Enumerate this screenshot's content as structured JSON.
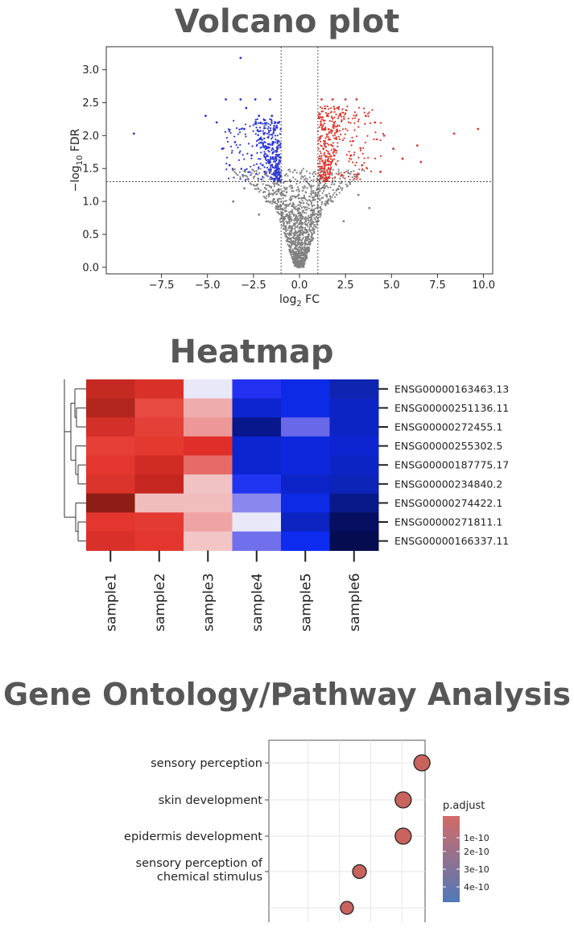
{
  "titles": {
    "volcano": "Volcano plot",
    "heatmap": "Heatmap",
    "go": "Gene Ontology/Pathway Analysis"
  },
  "chart_data": [
    {
      "type": "scatter",
      "name": "volcano",
      "title": "Volcano plot",
      "xlabel_base": "log",
      "xlabel_sub": "2",
      "xlabel_suffix": " FC",
      "ylabel_prefix": "−log",
      "ylabel_sub": "10",
      "ylabel_suffix": " FDR",
      "xlim": [
        -10.5,
        10.5
      ],
      "ylim": [
        -0.1,
        3.35
      ],
      "xticks": [
        -7.5,
        -5.0,
        -2.5,
        0.0,
        2.5,
        5.0,
        7.5,
        10.0
      ],
      "xtick_labels": [
        "−7.5",
        "−5.0",
        "−2.5",
        "0.0",
        "2.5",
        "5.0",
        "7.5",
        "10.0"
      ],
      "yticks": [
        0.0,
        0.5,
        1.0,
        1.5,
        2.0,
        2.5,
        3.0
      ],
      "ytick_labels": [
        "0.0",
        "0.5",
        "1.0",
        "1.5",
        "2.0",
        "2.5",
        "3.0"
      ],
      "thresholds": {
        "log2fc": [
          -1,
          1
        ],
        "neg_log10_fdr": 1.3
      },
      "colors": {
        "up": "#e0352b",
        "down": "#2b35d6",
        "ns": "#808080"
      },
      "points": [
        {
          "x": -9.0,
          "y": 2.03,
          "group": "down"
        },
        {
          "x": -5.1,
          "y": 2.3,
          "group": "down"
        },
        {
          "x": -4.5,
          "y": 2.2,
          "group": "down"
        },
        {
          "x": -4.0,
          "y": 2.55,
          "group": "down"
        },
        {
          "x": -3.2,
          "y": 2.55,
          "group": "down"
        },
        {
          "x": -2.9,
          "y": 2.42,
          "group": "down"
        },
        {
          "x": -2.4,
          "y": 2.55,
          "group": "down"
        },
        {
          "x": -2.2,
          "y": 2.3,
          "group": "down"
        },
        {
          "x": -1.6,
          "y": 2.55,
          "group": "down"
        },
        {
          "x": -1.4,
          "y": 2.1,
          "group": "down"
        },
        {
          "x": -1.2,
          "y": 1.8,
          "group": "down"
        },
        {
          "x": -1.7,
          "y": 1.6,
          "group": "down"
        },
        {
          "x": -2.1,
          "y": 1.95,
          "group": "down"
        },
        {
          "x": -3.5,
          "y": 1.9,
          "group": "down"
        },
        {
          "x": -3.8,
          "y": 1.55,
          "group": "down"
        },
        {
          "x": -1.3,
          "y": 1.4,
          "group": "down"
        },
        {
          "x": -1.1,
          "y": 1.35,
          "group": "down"
        },
        {
          "x": -2.6,
          "y": 1.7,
          "group": "down"
        },
        {
          "x": -1.9,
          "y": 1.45,
          "group": "down"
        },
        {
          "x": -3.0,
          "y": 2.1,
          "group": "down"
        },
        {
          "x": -4.2,
          "y": 1.8,
          "group": "down"
        },
        {
          "x": -2.0,
          "y": 1.55,
          "group": "down"
        },
        {
          "x": -1.5,
          "y": 2.3,
          "group": "down"
        },
        {
          "x": -3.2,
          "y": 3.18,
          "group": "down"
        },
        {
          "x": 1.2,
          "y": 2.55,
          "group": "up"
        },
        {
          "x": 1.5,
          "y": 2.3,
          "group": "up"
        },
        {
          "x": 1.8,
          "y": 2.55,
          "group": "up"
        },
        {
          "x": 2.1,
          "y": 2.42,
          "group": "up"
        },
        {
          "x": 2.5,
          "y": 2.55,
          "group": "up"
        },
        {
          "x": 3.1,
          "y": 2.55,
          "group": "up"
        },
        {
          "x": 3.6,
          "y": 2.3,
          "group": "up"
        },
        {
          "x": 4.1,
          "y": 2.2,
          "group": "up"
        },
        {
          "x": 4.6,
          "y": 2.0,
          "group": "up"
        },
        {
          "x": 5.1,
          "y": 1.8,
          "group": "up"
        },
        {
          "x": 5.6,
          "y": 1.65,
          "group": "up"
        },
        {
          "x": 6.4,
          "y": 1.85,
          "group": "up"
        },
        {
          "x": 6.6,
          "y": 1.6,
          "group": "up"
        },
        {
          "x": 1.3,
          "y": 1.8,
          "group": "up"
        },
        {
          "x": 1.6,
          "y": 1.5,
          "group": "up"
        },
        {
          "x": 2.0,
          "y": 1.95,
          "group": "up"
        },
        {
          "x": 2.8,
          "y": 1.7,
          "group": "up"
        },
        {
          "x": 3.4,
          "y": 1.55,
          "group": "up"
        },
        {
          "x": 1.1,
          "y": 1.4,
          "group": "up"
        },
        {
          "x": 1.4,
          "y": 2.1,
          "group": "up"
        },
        {
          "x": 2.3,
          "y": 1.4,
          "group": "up"
        },
        {
          "x": 4.4,
          "y": 1.45,
          "group": "up"
        },
        {
          "x": 8.4,
          "y": 2.03,
          "group": "up"
        },
        {
          "x": 9.7,
          "y": 2.1,
          "group": "up"
        },
        {
          "x": 0.0,
          "y": 0.0,
          "group": "ns"
        },
        {
          "x": -0.3,
          "y": 0.2,
          "group": "ns"
        },
        {
          "x": 0.3,
          "y": 0.2,
          "group": "ns"
        },
        {
          "x": -0.5,
          "y": 0.5,
          "group": "ns"
        },
        {
          "x": 0.5,
          "y": 0.5,
          "group": "ns"
        },
        {
          "x": -0.7,
          "y": 0.8,
          "group": "ns"
        },
        {
          "x": 0.7,
          "y": 0.8,
          "group": "ns"
        },
        {
          "x": -0.9,
          "y": 1.1,
          "group": "ns"
        },
        {
          "x": 0.9,
          "y": 1.1,
          "group": "ns"
        },
        {
          "x": -1.8,
          "y": 1.0,
          "group": "ns"
        },
        {
          "x": 1.8,
          "y": 1.0,
          "group": "ns"
        },
        {
          "x": -3.0,
          "y": 1.2,
          "group": "ns"
        },
        {
          "x": 3.2,
          "y": 1.1,
          "group": "ns"
        },
        {
          "x": -2.2,
          "y": 0.8,
          "group": "ns"
        },
        {
          "x": 2.4,
          "y": 0.7,
          "group": "ns"
        },
        {
          "x": 3.8,
          "y": 0.9,
          "group": "ns"
        },
        {
          "x": -3.6,
          "y": 1.0,
          "group": "ns"
        }
      ]
    },
    {
      "type": "heatmap",
      "name": "heatmap",
      "title": "Heatmap",
      "rows": [
        "ENSG00000163463.13",
        "ENSG00000251136.11",
        "ENSG00000272455.1",
        "ENSG00000255302.5",
        "ENSG00000187775.17",
        "ENSG00000234840.2",
        "ENSG00000274422.1",
        "ENSG00000271811.1",
        "ENSG00000166337.11"
      ],
      "columns": [
        "sample1",
        "sample2",
        "sample3",
        "sample4",
        "sample5",
        "sample6"
      ],
      "cell_colors": [
        [
          "#c52a22",
          "#d9312a",
          "#e8e8f8",
          "#2331f0",
          "#0d2ae6",
          "#0f24b0"
        ],
        [
          "#b3261e",
          "#e64a40",
          "#efacac",
          "#0d25d0",
          "#0d2ae6",
          "#0d24c4"
        ],
        [
          "#d3302a",
          "#e34038",
          "#ed9898",
          "#09178c",
          "#6868e8",
          "#0d24c4"
        ],
        [
          "#e53f37",
          "#e4392f",
          "#e02e28",
          "#0d25d0",
          "#0d28dc",
          "#0d25d0"
        ],
        [
          "#e3362e",
          "#d12c24",
          "#e66a66",
          "#0d25d0",
          "#0d28dc",
          "#0d24c4"
        ],
        [
          "#db342c",
          "#c52620",
          "#f1c2c2",
          "#2035f0",
          "#0d25c8",
          "#0d24b8"
        ],
        [
          "#8e1d16",
          "#f1bcbc",
          "#f1bcbc",
          "#8888ee",
          "#0d2ae6",
          "#081a8a"
        ],
        [
          "#e3362e",
          "#e33a32",
          "#efa4a4",
          "#e8e8f8",
          "#0d24c0",
          "#060f60"
        ],
        [
          "#d9302a",
          "#e3362e",
          "#f3c6c6",
          "#7070ec",
          "#0d2cf0",
          "#050c50"
        ]
      ]
    },
    {
      "type": "scatter",
      "name": "go-dotplot",
      "title": "Gene Ontology/Pathway Analysis",
      "categories": [
        "sensory perception",
        "skin development",
        "epidermis development",
        "sensory perception of\nchemical stimulus",
        "…"
      ],
      "visible_category_labels": [
        "sensory perception",
        "skin development",
        "epidermis development",
        [
          "sensory perception of",
          "chemical stimulus"
        ]
      ],
      "values": [
        0.98,
        0.86,
        0.86,
        0.58,
        0.5
      ],
      "xlim": [
        0.0,
        1.0
      ],
      "dot_color": "#c8635e",
      "legend": {
        "title": "p.adjust",
        "labels": [
          "1e-10",
          "2e-10",
          "3e-10",
          "4e-10"
        ],
        "gradient": [
          "#d36b66",
          "#4f79b8"
        ]
      }
    }
  ]
}
